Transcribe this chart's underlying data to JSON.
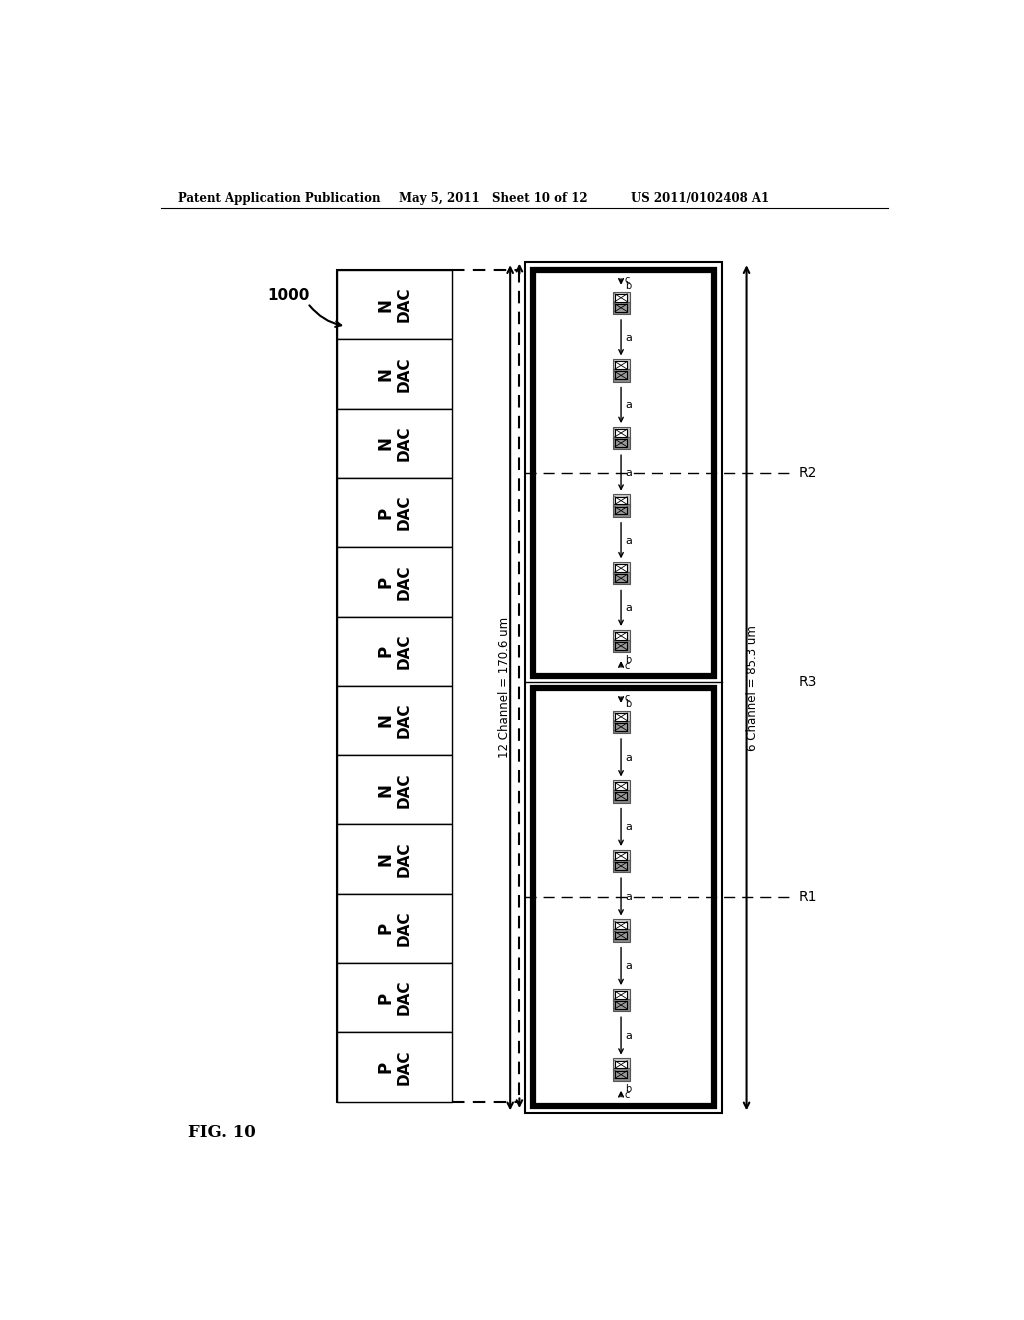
{
  "title_left": "Patent Application Publication",
  "title_mid": "May 5, 2011   Sheet 10 of 12",
  "title_right": "US 2011/0102408 A1",
  "fig_label": "FIG. 10",
  "ref_label": "1000",
  "dac_cells": [
    "N DAC",
    "N DAC",
    "N DAC",
    "P DAC",
    "P DAC",
    "P DAC",
    "N DAC",
    "N DAC",
    "N DAC",
    "P DAC",
    "P DAC",
    "P DAC"
  ],
  "label_12ch": "12 Channel = 170.6 um",
  "label_6ch": "6 Channel = 85.3 um",
  "label_R1": "R1",
  "label_R2": "R2",
  "label_R3": "R3",
  "bg_color": "#ffffff",
  "line_color": "#000000"
}
